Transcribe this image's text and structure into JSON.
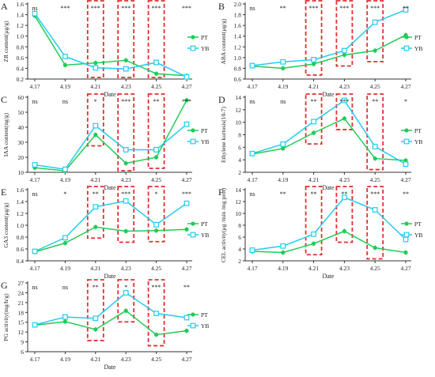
{
  "colors": {
    "PT": "#22cc55",
    "YB": "#22ccee",
    "box": "#e03030",
    "axis": "#333333"
  },
  "chart_data": [
    {
      "panel": "A",
      "type": "line",
      "xlabel": "Date",
      "ylabel": "ZR content(μg/g)",
      "categories": [
        "4.17",
        "4.19",
        "4.21",
        "4.23",
        "4.25",
        "4.27"
      ],
      "ylim": [
        0.2,
        1.6
      ],
      "yticks": [
        0.2,
        0.4,
        0.6,
        0.8,
        1.0,
        1.2,
        1.4,
        1.6
      ],
      "yticklabels": [
        "0.2",
        "0.4",
        "0.6",
        "0.8",
        "1.0",
        "1.2",
        "1.4",
        "1.6"
      ],
      "series": [
        {
          "name": "PT",
          "values": [
            1.38,
            0.46,
            0.5,
            0.55,
            0.3,
            0.26
          ]
        },
        {
          "name": "YB",
          "values": [
            1.42,
            0.62,
            0.41,
            0.39,
            0.51,
            0.24
          ]
        }
      ],
      "annotations": [
        "ns",
        "***",
        "***",
        "***",
        "***",
        "***"
      ],
      "boxes": [
        2,
        3,
        4
      ]
    },
    {
      "panel": "B",
      "type": "line",
      "xlabel": "Date",
      "ylabel": "ABA content(μg/g)",
      "categories": [
        "4.17",
        "4.19",
        "4.21",
        "4.23",
        "4.25",
        "4.27"
      ],
      "ylim": [
        0.6,
        2.0
      ],
      "yticks": [
        0.6,
        0.8,
        1.0,
        1.2,
        1.4,
        1.6,
        1.8,
        2.0
      ],
      "yticklabels": [
        "0.6",
        "0.8",
        "1.0",
        "1.2",
        "1.4",
        "1.6",
        "1.8",
        "2.0"
      ],
      "series": [
        {
          "name": "PT",
          "values": [
            0.84,
            0.8,
            0.88,
            1.05,
            1.13,
            1.42
          ]
        },
        {
          "name": "YB",
          "values": [
            0.85,
            0.92,
            0.96,
            1.13,
            1.66,
            1.89
          ]
        }
      ],
      "annotations": [
        "ns",
        "**",
        "***",
        "***",
        "***",
        "**"
      ],
      "boxes": [
        2,
        3,
        4
      ]
    },
    {
      "panel": "C",
      "type": "line",
      "xlabel": "Date",
      "ylabel": "IAA content(ng/g)",
      "categories": [
        "4.17",
        "4.19",
        "4.21",
        "4.23",
        "4.25",
        "4.27"
      ],
      "ylim": [
        10,
        60
      ],
      "yticks": [
        10,
        20,
        30,
        40,
        50,
        60
      ],
      "yticklabels": [
        "10",
        "20",
        "30",
        "40",
        "50",
        "60"
      ],
      "series": [
        {
          "name": "PT",
          "values": [
            13,
            11,
            35,
            16,
            20,
            58
          ]
        },
        {
          "name": "YB",
          "values": [
            15,
            12,
            41,
            25,
            25,
            42
          ]
        }
      ],
      "annotations": [
        "ns",
        "ns",
        "*",
        "***",
        "**",
        "***"
      ],
      "boxes": [
        2,
        3,
        4
      ]
    },
    {
      "panel": "D",
      "type": "line",
      "xlabel": "Date",
      "ylabel": "Ethylene kurtosis(10-7)",
      "categories": [
        "4.17",
        "4.19",
        "4.21",
        "4.23",
        "4.25",
        "4.27"
      ],
      "ylim": [
        2,
        14
      ],
      "yticks": [
        2,
        4,
        6,
        8,
        10,
        12,
        14
      ],
      "yticklabels": [
        "2",
        "4",
        "6",
        "8",
        "10",
        "12",
        "14"
      ],
      "series": [
        {
          "name": "PT",
          "values": [
            4.9,
            5.8,
            8.3,
            10.6,
            4.2,
            3.9
          ]
        },
        {
          "name": "YB",
          "values": [
            5.0,
            6.5,
            10.1,
            13.5,
            6.1,
            3.3
          ]
        }
      ],
      "annotations": [
        "ns",
        "ns",
        "**",
        "***",
        "**",
        "*"
      ],
      "boxes": [
        2,
        3,
        4
      ]
    },
    {
      "panel": "E",
      "type": "line",
      "xlabel": "Date",
      "ylabel": "GA3 content(μg/g)",
      "categories": [
        "4.17",
        "4.19",
        "4.21",
        "4.23",
        "4.25",
        "4.27"
      ],
      "ylim": [
        0.4,
        1.6
      ],
      "yticks": [
        0.4,
        0.6,
        0.8,
        1.0,
        1.2,
        1.4,
        1.6
      ],
      "yticklabels": [
        "0.4",
        "0.6",
        "0.8",
        "1.0",
        "1.2",
        "1.4",
        "1.6"
      ],
      "series": [
        {
          "name": "PT",
          "values": [
            0.55,
            0.7,
            0.97,
            0.9,
            0.91,
            0.93
          ]
        },
        {
          "name": "YB",
          "values": [
            0.56,
            0.79,
            1.31,
            1.41,
            1.01,
            1.37
          ]
        }
      ],
      "annotations": [
        "ns",
        "*",
        "**",
        "***",
        "*",
        "***"
      ],
      "boxes": [
        2,
        3,
        4
      ]
    },
    {
      "panel": "F",
      "type": "line",
      "xlabel": "Date",
      "ylabel": "CEL activity(μg /min /mg prot)",
      "categories": [
        "4.17",
        "4.19",
        "4.21",
        "4.23",
        "4.25",
        "4.27"
      ],
      "ylim": [
        2,
        14
      ],
      "yticks": [
        2,
        4,
        6,
        8,
        10,
        12,
        14
      ],
      "yticklabels": [
        "2",
        "4",
        "6",
        "8",
        "10",
        "12",
        "14"
      ],
      "series": [
        {
          "name": "PT",
          "values": [
            3.6,
            3.4,
            4.9,
            7.0,
            4.2,
            3.4
          ]
        },
        {
          "name": "YB",
          "values": [
            3.8,
            4.5,
            6.5,
            12.7,
            10.6,
            5.6
          ]
        }
      ],
      "annotations": [
        "ns",
        "**",
        "**",
        "**",
        "***",
        "**"
      ],
      "boxes": [
        2,
        3,
        4
      ]
    },
    {
      "panel": "G",
      "type": "line",
      "xlabel": "Date",
      "ylabel": "PG activity(mg/h/g)",
      "categories": [
        "4.17",
        "4.19",
        "4.21",
        "4.23",
        "4.25",
        "4.27"
      ],
      "ylim": [
        6,
        27
      ],
      "yticks": [
        6,
        9,
        12,
        15,
        18,
        21,
        24,
        27
      ],
      "yticklabels": [
        "6",
        "9",
        "12",
        "15",
        "18",
        "21",
        "24",
        "27"
      ],
      "series": [
        {
          "name": "PT",
          "values": [
            14.1,
            15.2,
            12.8,
            18.5,
            11.2,
            12.4
          ]
        },
        {
          "name": "YB",
          "values": [
            14.2,
            16.6,
            16.2,
            24.0,
            17.7,
            16.4
          ]
        }
      ],
      "annotations": [
        "ns",
        "ns",
        "**",
        "*",
        "***",
        "**"
      ],
      "boxes": [
        2,
        3,
        4
      ]
    }
  ]
}
